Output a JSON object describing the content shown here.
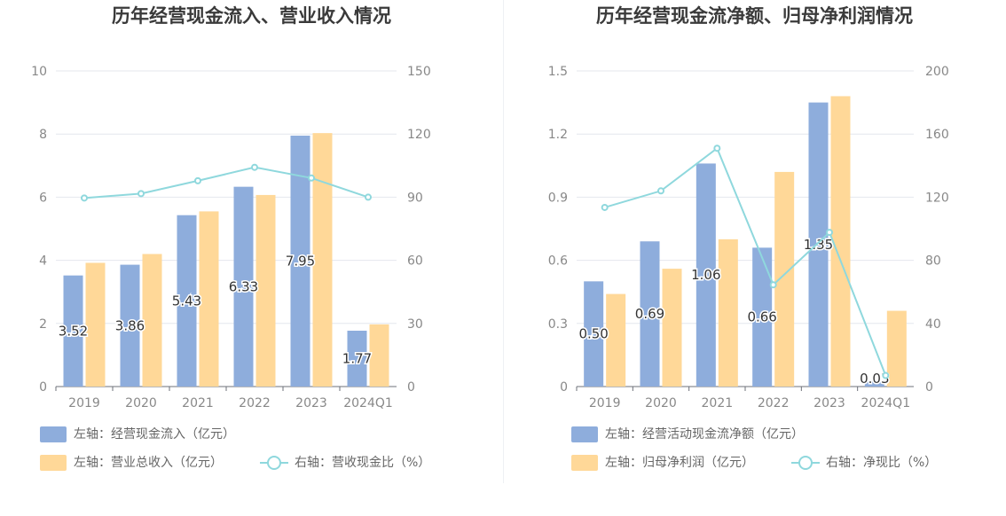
{
  "colors": {
    "bar1": "#8eaddc",
    "bar2": "#ffd898",
    "line": "#8fd8dd",
    "grid": "#e4e7ee",
    "axis": "#888888",
    "label": "#333333"
  },
  "panels": [
    {
      "title": "历年经营现金流入、营业收入情况",
      "legend": [
        {
          "kind": "bar1",
          "label": "左轴：经营现金流入（亿元）"
        },
        {
          "kind": "bar2",
          "label": "左轴：营业总收入（亿元）"
        },
        {
          "kind": "line",
          "label": "右轴：营收现金比（%）"
        }
      ]
    },
    {
      "title": "历年经营现金流净额、归母净利润情况",
      "legend": [
        {
          "kind": "bar1",
          "label": "左轴：经营活动现金流净额（亿元）"
        },
        {
          "kind": "bar2",
          "label": "左轴：归母净利润（亿元）"
        },
        {
          "kind": "line",
          "label": "右轴：净现比（%）"
        }
      ]
    }
  ],
  "chart_data": [
    {
      "type": "bar",
      "categories": [
        "2019",
        "2020",
        "2021",
        "2022",
        "2023",
        "2024Q1"
      ],
      "left_axis": {
        "ylim": [
          0,
          10
        ],
        "ticks": [
          "0",
          "2",
          "4",
          "6",
          "8",
          "10"
        ]
      },
      "right_axis": {
        "ylim": [
          0,
          150
        ],
        "ticks": [
          "0",
          "30",
          "60",
          "90",
          "120",
          "150"
        ]
      },
      "series": [
        {
          "name": "左轴：经营现金流入（亿元）",
          "type": "bar",
          "axis": "left",
          "values": [
            3.52,
            3.86,
            5.43,
            6.33,
            7.95,
            1.77
          ],
          "labels": [
            "3.52",
            "3.86",
            "5.43",
            "6.33",
            "7.95",
            "1.77"
          ]
        },
        {
          "name": "左轴：营业总收入（亿元）",
          "type": "bar",
          "axis": "left",
          "values": [
            3.92,
            4.2,
            5.55,
            6.07,
            8.03,
            1.97
          ]
        },
        {
          "name": "右轴：营收现金比（%）",
          "type": "line",
          "axis": "right",
          "values": [
            89.6,
            91.7,
            97.8,
            104.2,
            99.1,
            90.0
          ]
        }
      ]
    },
    {
      "type": "bar",
      "categories": [
        "2019",
        "2020",
        "2021",
        "2022",
        "2023",
        "2024Q1"
      ],
      "left_axis": {
        "ylim": [
          0,
          1.5
        ],
        "ticks": [
          "0",
          "0.3",
          "0.6",
          "0.9",
          "1.2",
          "1.5"
        ]
      },
      "right_axis": {
        "ylim": [
          0,
          200
        ],
        "ticks": [
          "0",
          "40",
          "80",
          "120",
          "160",
          "200"
        ]
      },
      "series": [
        {
          "name": "左轴：经营活动现金流净额（亿元）",
          "type": "bar",
          "axis": "left",
          "values": [
            0.5,
            0.69,
            1.06,
            0.66,
            1.35,
            0.03
          ],
          "labels": [
            "0.50",
            "0.69",
            "1.06",
            "0.66",
            "1.35",
            "0.03"
          ]
        },
        {
          "name": "左轴：归母净利润（亿元）",
          "type": "bar",
          "axis": "left",
          "values": [
            0.44,
            0.56,
            0.7,
            1.02,
            1.38,
            0.36
          ]
        },
        {
          "name": "右轴：净现比（%）",
          "type": "line",
          "axis": "right",
          "values": [
            113.5,
            124.0,
            151.0,
            64.5,
            97.7,
            7.0
          ]
        }
      ]
    }
  ]
}
